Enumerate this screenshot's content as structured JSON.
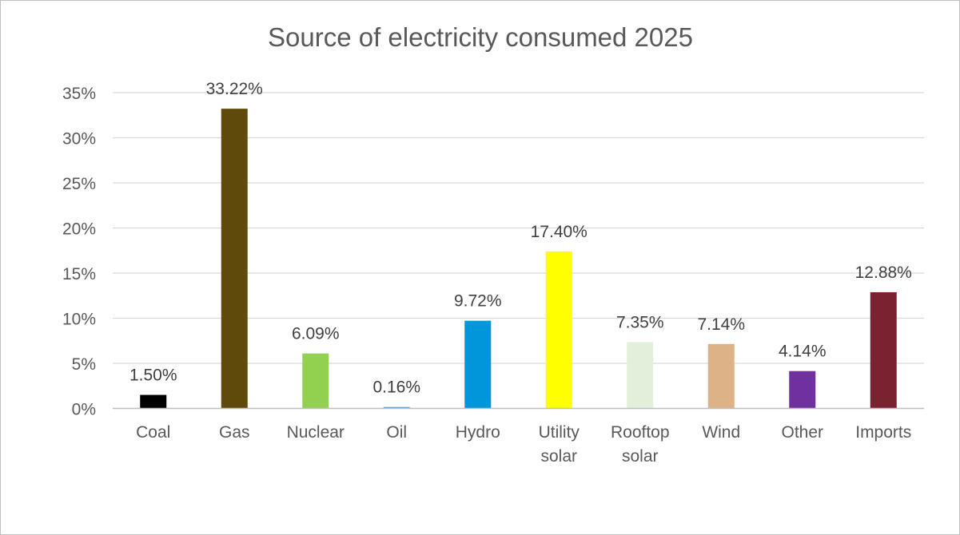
{
  "chart_data": {
    "type": "bar",
    "title": "Source of electricity consumed 2025",
    "xlabel": "",
    "ylabel": "",
    "ylim": [
      0,
      35
    ],
    "yticks": [
      0,
      5,
      10,
      15,
      20,
      25,
      30,
      35
    ],
    "ytick_labels": [
      "0%",
      "5%",
      "10%",
      "15%",
      "20%",
      "25%",
      "30%",
      "35%"
    ],
    "grid": true,
    "legend": "none",
    "categories": [
      {
        "lines": [
          "Coal"
        ]
      },
      {
        "lines": [
          "Gas"
        ]
      },
      {
        "lines": [
          "Nuclear"
        ]
      },
      {
        "lines": [
          "Oil"
        ]
      },
      {
        "lines": [
          "Hydro"
        ]
      },
      {
        "lines": [
          "Utility",
          "solar"
        ]
      },
      {
        "lines": [
          "Rooftop",
          "solar"
        ]
      },
      {
        "lines": [
          "Wind"
        ]
      },
      {
        "lines": [
          "Other"
        ]
      },
      {
        "lines": [
          "Imports"
        ]
      }
    ],
    "values": [
      1.5,
      33.22,
      6.09,
      0.16,
      9.72,
      17.4,
      7.35,
      7.14,
      4.14,
      12.88
    ],
    "data_labels": [
      "1.50%",
      "33.22%",
      "6.09%",
      "0.16%",
      "9.72%",
      "17.40%",
      "7.35%",
      "7.14%",
      "4.14%",
      "12.88%"
    ],
    "colors": [
      "#000000",
      "#604A0B",
      "#92D050",
      "#5B9BD5",
      "#0096D9",
      "#FFFF00",
      "#E2EFDA",
      "#DEB287",
      "#7030A0",
      "#7B2230"
    ]
  }
}
